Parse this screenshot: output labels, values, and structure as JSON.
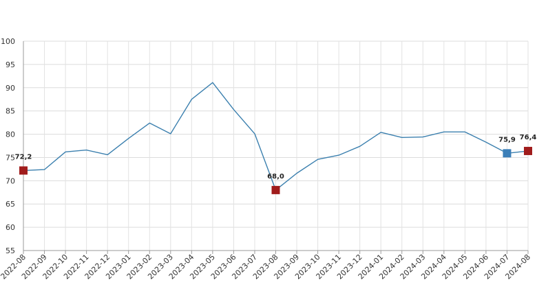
{
  "chart_data": {
    "type": "line",
    "title": "",
    "xlabel": "",
    "ylabel": "",
    "categories": [
      "2022-08",
      "2022-09",
      "2022-10",
      "2022-11",
      "2022-12",
      "2023-01",
      "2023-02",
      "2023-03",
      "2023-04",
      "2023-05",
      "2023-06",
      "2023-07",
      "2023-08",
      "2023-09",
      "2023-10",
      "2023-11",
      "2023-12",
      "2024-01",
      "2024-02",
      "2024-03",
      "2024-04",
      "2024-05",
      "2024-06",
      "2024-07",
      "2024-08"
    ],
    "series": [
      {
        "values": [
          72.2,
          72.4,
          76.2,
          76.6,
          75.6,
          79.1,
          82.4,
          80.1,
          87.5,
          91.1,
          85.3,
          80.1,
          68.0,
          71.6,
          74.6,
          75.5,
          77.4,
          80.4,
          79.3,
          79.4,
          80.5,
          80.5,
          78.3,
          75.9,
          76.4
        ]
      }
    ],
    "ylim": [
      55,
      100
    ],
    "yticks": [
      55,
      60,
      65,
      70,
      75,
      80,
      85,
      90,
      95,
      100
    ],
    "grid": true,
    "line_color": "#3a7fae",
    "highlights": [
      {
        "category": "2022-08",
        "label": "72,2",
        "color": "#a01c1c"
      },
      {
        "category": "2023-08",
        "label": "68,0",
        "color": "#a01c1c"
      },
      {
        "category": "2024-07",
        "label": "75,9",
        "color": "#3b7fb8"
      },
      {
        "category": "2024-08",
        "label": "76,4",
        "color": "#a01c1c"
      }
    ]
  }
}
